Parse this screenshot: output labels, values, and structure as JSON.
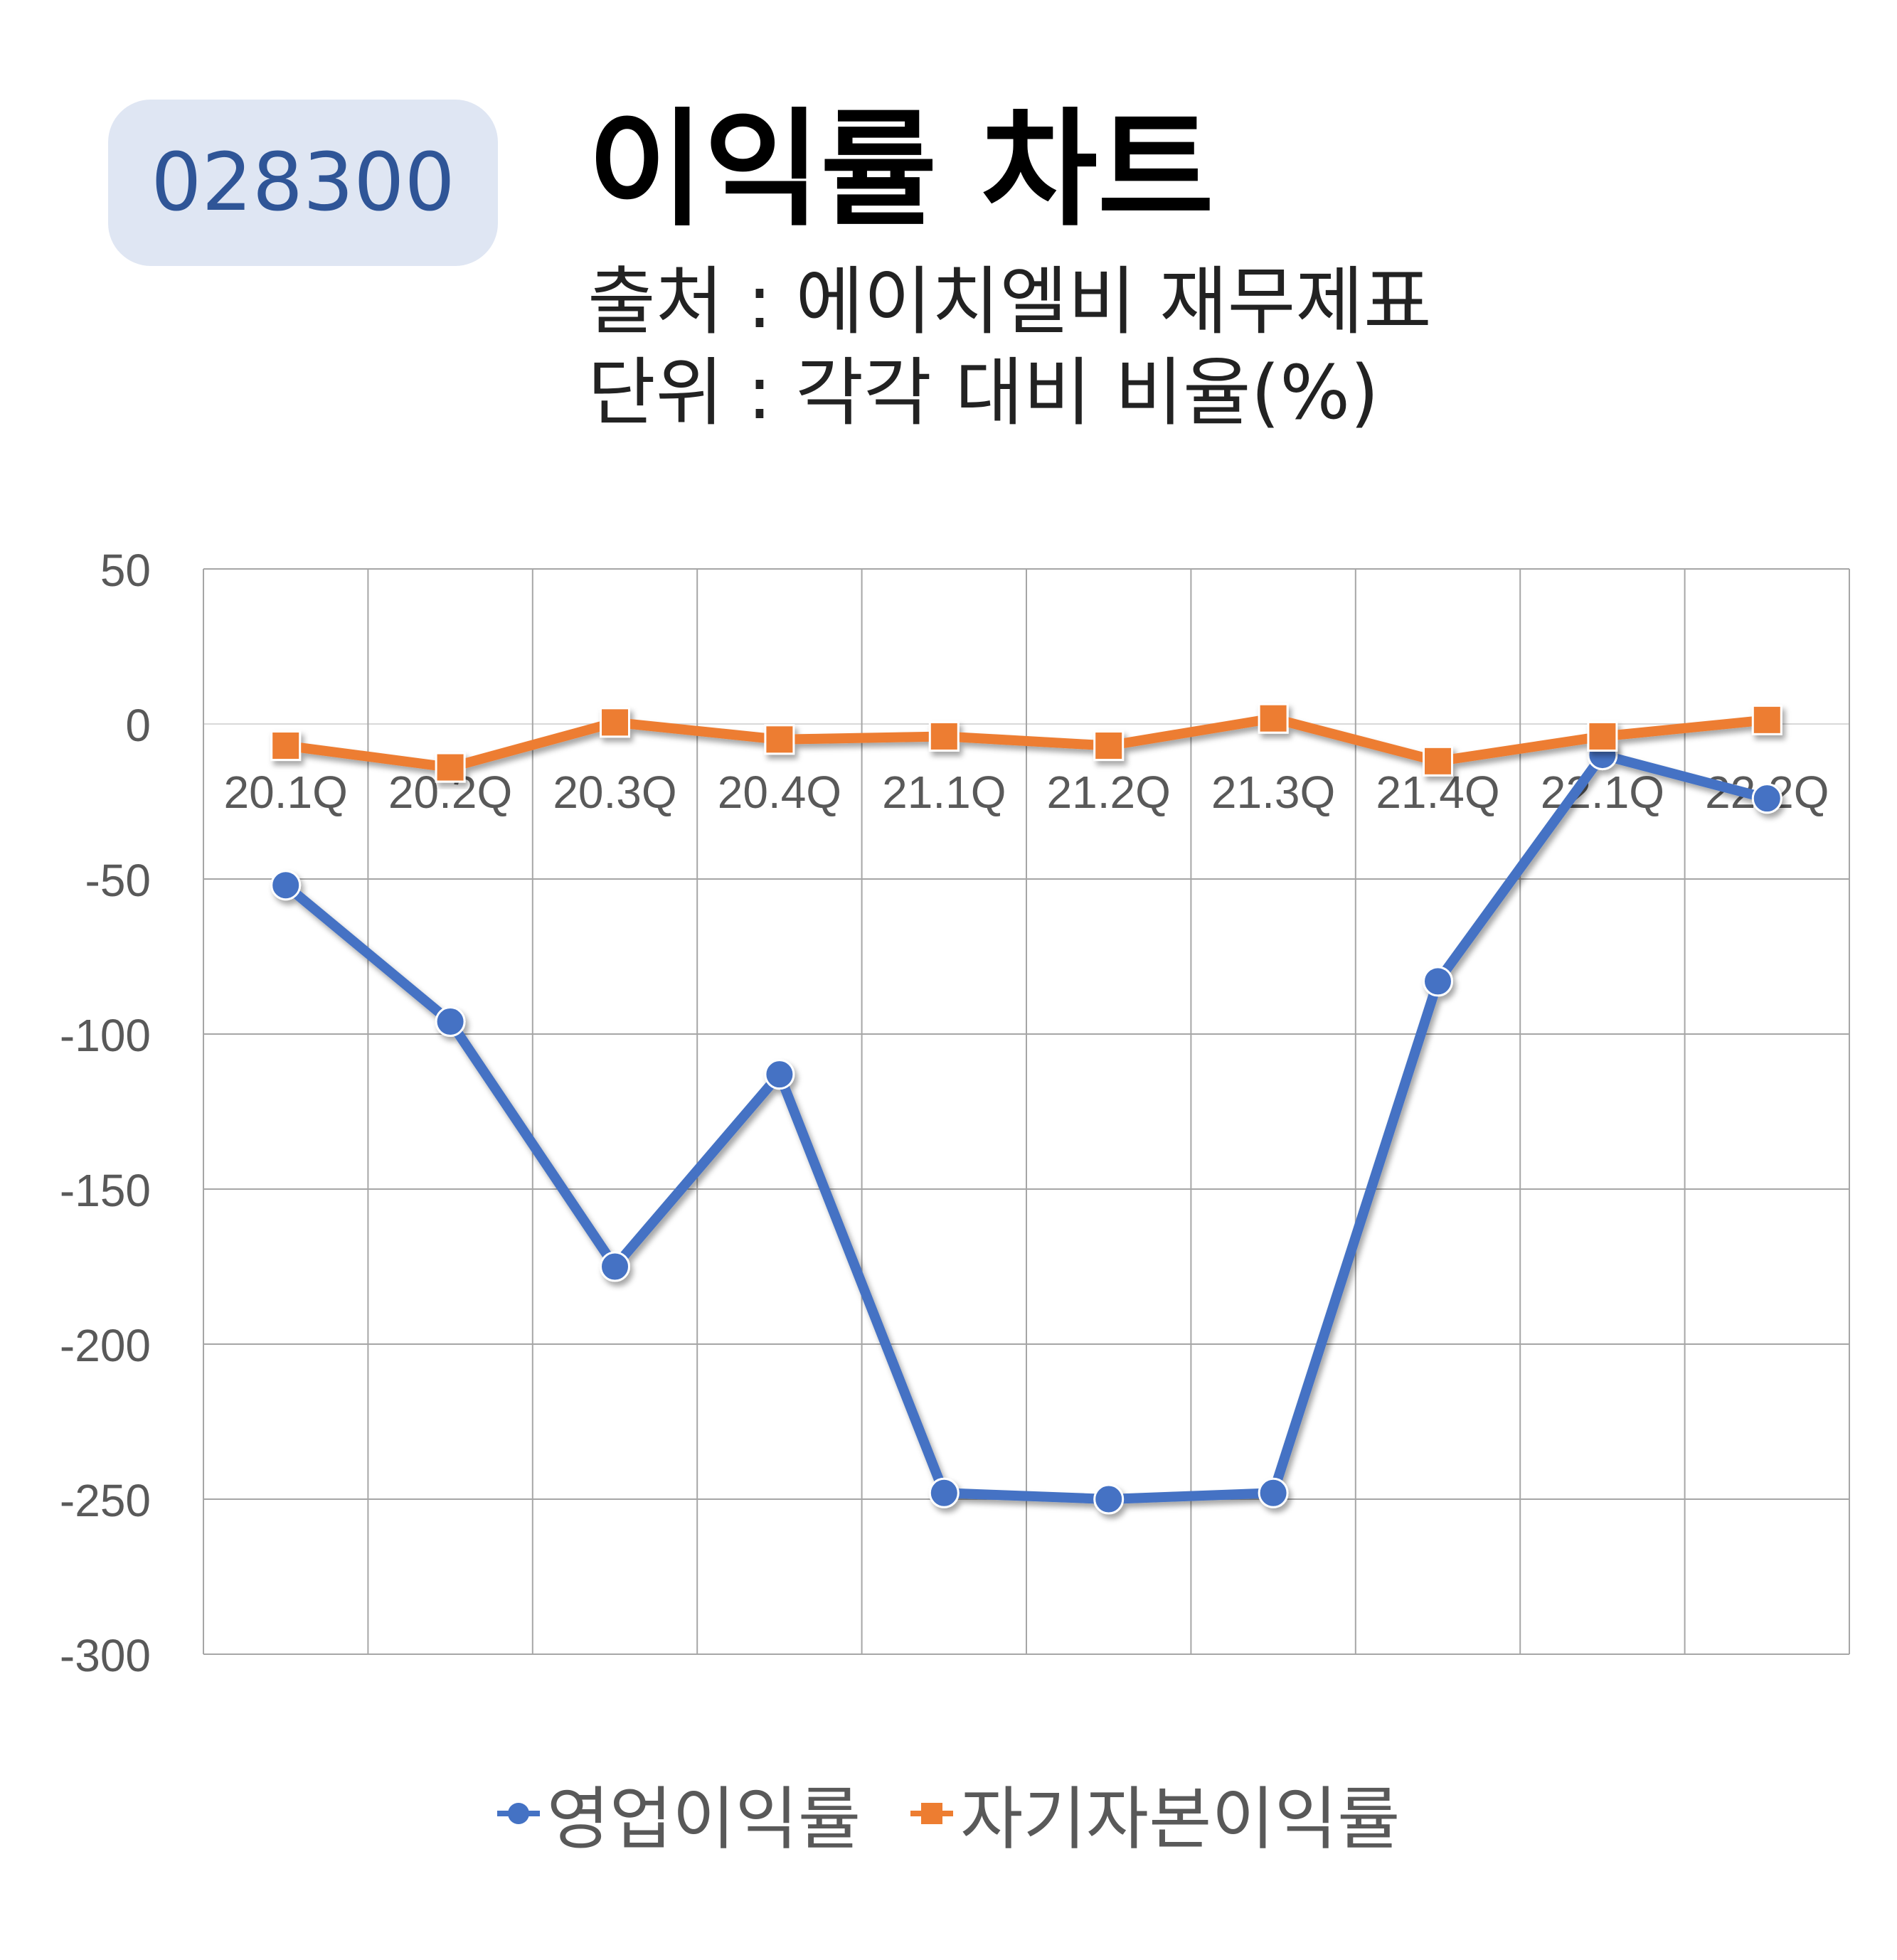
{
  "header": {
    "stock_code": "028300",
    "title": "이익률 차트",
    "source": "출처 : 에이치엘비 재무제표",
    "unit": "단위 : 각각 대비 비율(%)"
  },
  "colors": {
    "series1": "#4472c4",
    "series2": "#ed7d31",
    "badge_bg": "#dfe6f3",
    "badge_text": "#2f5597",
    "grid": "#a6a6a6"
  },
  "chart_data": {
    "type": "line",
    "categories": [
      "20.1Q",
      "20.2Q",
      "20.3Q",
      "20.4Q",
      "21.1Q",
      "21.2Q",
      "21.3Q",
      "21.4Q",
      "22.1Q",
      "22.2Q"
    ],
    "series": [
      {
        "name": "영업이익률",
        "values": [
          -52,
          -96,
          -175,
          -113,
          -248,
          -250,
          -248,
          -83,
          -10,
          -24
        ]
      },
      {
        "name": "자기자본이익률",
        "values": [
          -7,
          -14,
          0.5,
          -5,
          -4,
          -7,
          1.8,
          -12,
          -4,
          1.3
        ]
      }
    ],
    "ylim": [
      -300,
      50
    ],
    "yticks": [
      "50",
      "0",
      "-50",
      "-100",
      "-150",
      "-200",
      "-250",
      "-300"
    ],
    "grid": true,
    "legend": "bottom"
  }
}
